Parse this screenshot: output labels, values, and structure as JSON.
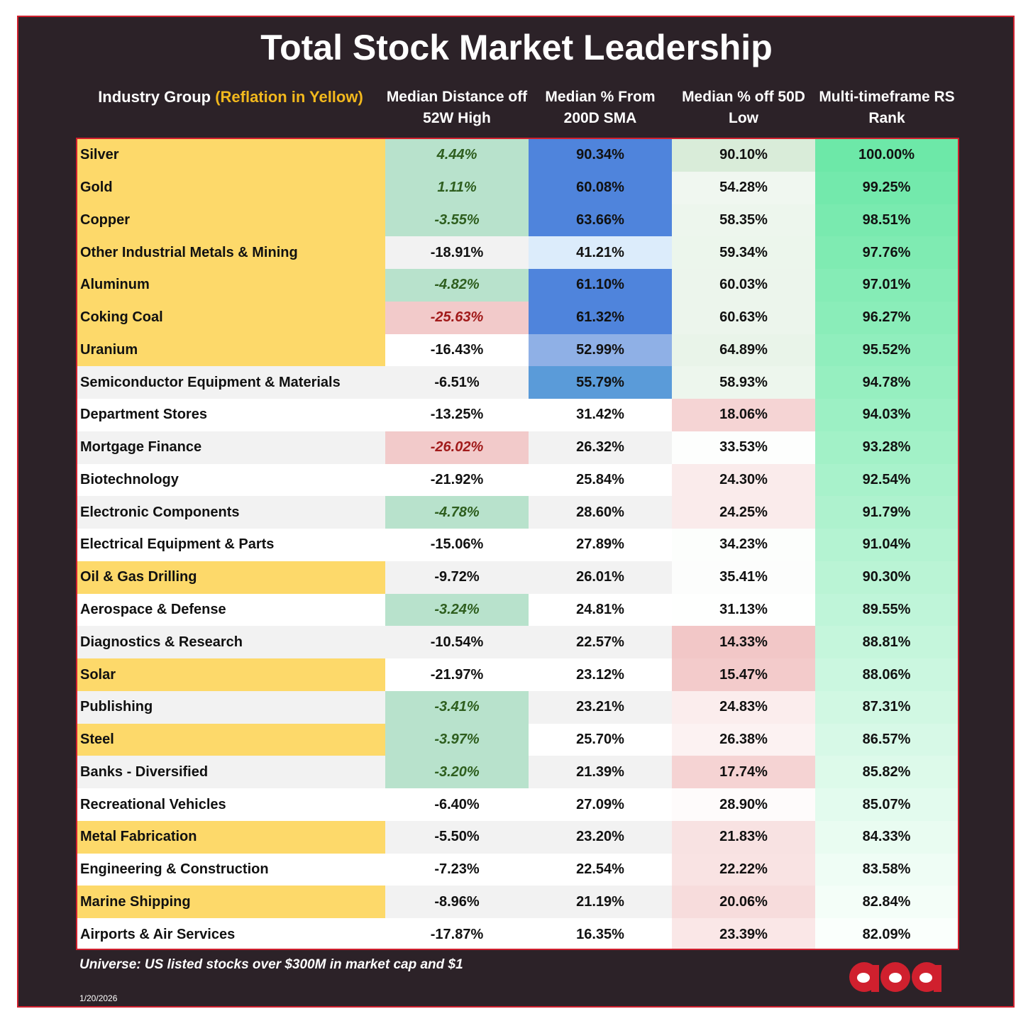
{
  "title": "Total Stock Market Leadership",
  "headers": {
    "group_prefix": "Industry Group ",
    "group_highlight": "(Reflation in Yellow)",
    "distance_52w": "Median Distance off 52W High",
    "pct_200d": "Median % From 200D SMA",
    "pct_50d_low": "Median % off 50D Low",
    "rs_rank": "Multi-timeframe RS Rank"
  },
  "colors": {
    "frame_bg": "#2c2228",
    "frame_border": "#d0202e",
    "reflation_yellow": "#fdd96a",
    "header_highlight": "#f2b81d",
    "positive_text_green": "#2e5e1e",
    "negative_text_red": "#a11a1a",
    "green_fill": "#b8e2cc",
    "red_fill": "#f2caca",
    "blue_strong": "#4f84dc",
    "rs_max": "#6de8a8"
  },
  "chart_data": {
    "type": "table",
    "title": "Total Stock Market Leadership",
    "columns": [
      "Industry Group (Reflation in Yellow)",
      "Median Distance off 52W High",
      "Median % From 200D SMA",
      "Median % off 50D Low",
      "Multi-timeframe RS Rank"
    ],
    "rows": [
      {
        "group": "Silver",
        "reflation": true,
        "dist_52w": "4.44%",
        "pct_200d": "90.34%",
        "pct_50d_low": "90.10%",
        "rs_rank": "100.00%"
      },
      {
        "group": "Gold",
        "reflation": true,
        "dist_52w": "1.11%",
        "pct_200d": "60.08%",
        "pct_50d_low": "54.28%",
        "rs_rank": "99.25%"
      },
      {
        "group": "Copper",
        "reflation": true,
        "dist_52w": "-3.55%",
        "pct_200d": "63.66%",
        "pct_50d_low": "58.35%",
        "rs_rank": "98.51%"
      },
      {
        "group": "Other Industrial Metals & Mining",
        "reflation": true,
        "dist_52w": "-18.91%",
        "pct_200d": "41.21%",
        "pct_50d_low": "59.34%",
        "rs_rank": "97.76%"
      },
      {
        "group": "Aluminum",
        "reflation": true,
        "dist_52w": "-4.82%",
        "pct_200d": "61.10%",
        "pct_50d_low": "60.03%",
        "rs_rank": "97.01%"
      },
      {
        "group": "Coking Coal",
        "reflation": true,
        "dist_52w": "-25.63%",
        "pct_200d": "61.32%",
        "pct_50d_low": "60.63%",
        "rs_rank": "96.27%"
      },
      {
        "group": "Uranium",
        "reflation": true,
        "dist_52w": "-16.43%",
        "pct_200d": "52.99%",
        "pct_50d_low": "64.89%",
        "rs_rank": "95.52%"
      },
      {
        "group": "Semiconductor Equipment & Materials",
        "reflation": false,
        "dist_52w": "-6.51%",
        "pct_200d": "55.79%",
        "pct_50d_low": "58.93%",
        "rs_rank": "94.78%"
      },
      {
        "group": "Department Stores",
        "reflation": false,
        "dist_52w": "-13.25%",
        "pct_200d": "31.42%",
        "pct_50d_low": "18.06%",
        "rs_rank": "94.03%"
      },
      {
        "group": "Mortgage Finance",
        "reflation": false,
        "dist_52w": "-26.02%",
        "pct_200d": "26.32%",
        "pct_50d_low": "33.53%",
        "rs_rank": "93.28%"
      },
      {
        "group": "Biotechnology",
        "reflation": false,
        "dist_52w": "-21.92%",
        "pct_200d": "25.84%",
        "pct_50d_low": "24.30%",
        "rs_rank": "92.54%"
      },
      {
        "group": "Electronic Components",
        "reflation": false,
        "dist_52w": "-4.78%",
        "pct_200d": "28.60%",
        "pct_50d_low": "24.25%",
        "rs_rank": "91.79%"
      },
      {
        "group": "Electrical Equipment & Parts",
        "reflation": false,
        "dist_52w": "-15.06%",
        "pct_200d": "27.89%",
        "pct_50d_low": "34.23%",
        "rs_rank": "91.04%"
      },
      {
        "group": "Oil & Gas Drilling",
        "reflation": true,
        "dist_52w": "-9.72%",
        "pct_200d": "26.01%",
        "pct_50d_low": "35.41%",
        "rs_rank": "90.30%"
      },
      {
        "group": "Aerospace & Defense",
        "reflation": false,
        "dist_52w": "-3.24%",
        "pct_200d": "24.81%",
        "pct_50d_low": "31.13%",
        "rs_rank": "89.55%"
      },
      {
        "group": "Diagnostics & Research",
        "reflation": false,
        "dist_52w": "-10.54%",
        "pct_200d": "22.57%",
        "pct_50d_low": "14.33%",
        "rs_rank": "88.81%"
      },
      {
        "group": "Solar",
        "reflation": true,
        "dist_52w": "-21.97%",
        "pct_200d": "23.12%",
        "pct_50d_low": "15.47%",
        "rs_rank": "88.06%"
      },
      {
        "group": "Publishing",
        "reflation": false,
        "dist_52w": "-3.41%",
        "pct_200d": "23.21%",
        "pct_50d_low": "24.83%",
        "rs_rank": "87.31%"
      },
      {
        "group": "Steel",
        "reflation": true,
        "dist_52w": "-3.97%",
        "pct_200d": "25.70%",
        "pct_50d_low": "26.38%",
        "rs_rank": "86.57%"
      },
      {
        "group": "Banks - Diversified",
        "reflation": false,
        "dist_52w": "-3.20%",
        "pct_200d": "21.39%",
        "pct_50d_low": "17.74%",
        "rs_rank": "85.82%"
      },
      {
        "group": "Recreational Vehicles",
        "reflation": false,
        "dist_52w": "-6.40%",
        "pct_200d": "27.09%",
        "pct_50d_low": "28.90%",
        "rs_rank": "85.07%"
      },
      {
        "group": "Metal Fabrication",
        "reflation": true,
        "dist_52w": "-5.50%",
        "pct_200d": "23.20%",
        "pct_50d_low": "21.83%",
        "rs_rank": "84.33%"
      },
      {
        "group": "Engineering & Construction",
        "reflation": false,
        "dist_52w": "-7.23%",
        "pct_200d": "22.54%",
        "pct_50d_low": "22.22%",
        "rs_rank": "83.58%"
      },
      {
        "group": "Marine Shipping",
        "reflation": true,
        "dist_52w": "-8.96%",
        "pct_200d": "21.19%",
        "pct_50d_low": "20.06%",
        "rs_rank": "82.84%"
      },
      {
        "group": "Airports & Air Services",
        "reflation": false,
        "dist_52w": "-17.87%",
        "pct_200d": "16.35%",
        "pct_50d_low": "23.39%",
        "rs_rank": "82.09%"
      }
    ]
  },
  "footer": {
    "universe": "Universe: US listed stocks over $300M in market cap and $1",
    "date": "1/20/2026",
    "logo_icon": "aoa-logo-icon"
  }
}
